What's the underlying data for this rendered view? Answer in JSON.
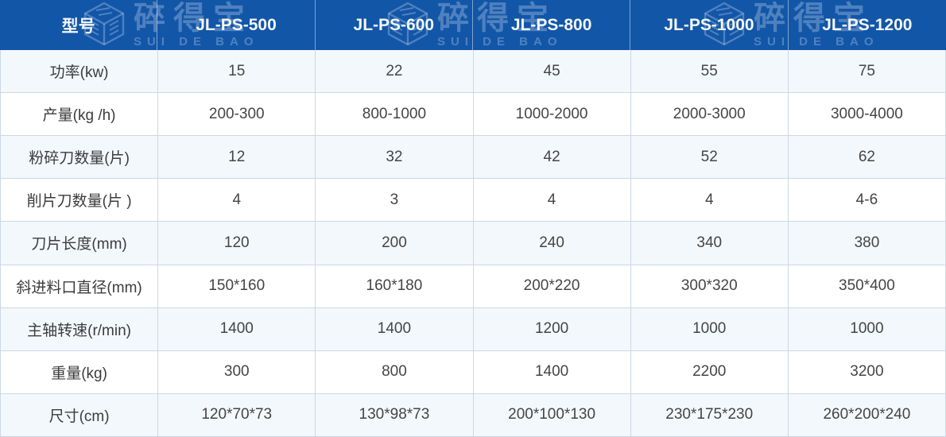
{
  "watermark": {
    "brand_cn": "碎得宝",
    "brand_en": "SUI DE BAO"
  },
  "colors": {
    "header_bg": "#1256a8",
    "header_text": "#f4f6f8",
    "row_alt_bg": "#f3f8fc",
    "row_bg": "#ffffff",
    "border": "#ccd8e4",
    "body_text": "#454545",
    "watermark": "rgba(255,255,255,0.26)"
  },
  "table": {
    "header": {
      "model_label": "型号",
      "columns": [
        "JL-PS-500",
        "JL-PS-600",
        "JL-PS-800",
        "JL-PS-1000",
        "JL-PS-1200"
      ]
    },
    "rows": [
      {
        "label": "功率(kw)",
        "values": [
          "15",
          "22",
          "45",
          "55",
          "75"
        ]
      },
      {
        "label": "产量(kg /h)",
        "values": [
          "200-300",
          "800-1000",
          "1000-2000",
          "2000-3000",
          "3000-4000"
        ]
      },
      {
        "label": "粉碎刀数量(片)",
        "values": [
          "12",
          "32",
          "42",
          "52",
          "62"
        ]
      },
      {
        "label": "削片刀数量(片 )",
        "values": [
          "4",
          "3",
          "4",
          "4",
          "4-6"
        ]
      },
      {
        "label": "刀片长度(mm)",
        "values": [
          "120",
          "200",
          "240",
          "340",
          "380"
        ]
      },
      {
        "label": "斜进料口直径(mm)",
        "values": [
          "150*160",
          "160*180",
          "200*220",
          "300*320",
          "350*400"
        ]
      },
      {
        "label": "主轴转速(r/min)",
        "values": [
          "1400",
          "1400",
          "1200",
          "1000",
          "1000"
        ]
      },
      {
        "label": "重量(kg)",
        "values": [
          "300",
          "800",
          "1400",
          "2200",
          "3200"
        ]
      },
      {
        "label": "尺寸(cm)",
        "values": [
          "120*70*73",
          "130*98*73",
          "200*100*130",
          "230*175*230",
          "260*200*240"
        ]
      }
    ]
  }
}
